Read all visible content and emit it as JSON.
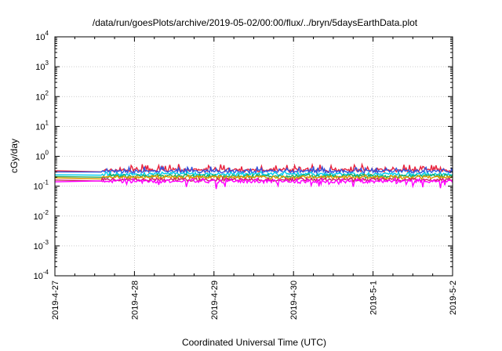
{
  "chart_data": {
    "type": "line",
    "title": "/data/run/goesPlots/archive/2019-05-02/00:00/flux/../bryn/5daysEarthData.plot",
    "xlabel": "Coordinated Universal Time (UTC)",
    "ylabel": "cGy/day",
    "y_scale": "log",
    "ylim": [
      0.0001,
      10000
    ],
    "xlim": [
      "2019-04-27T00:00",
      "2019-05-02T00:00"
    ],
    "x_ticks": [
      "2019-4-27",
      "2019-4-28",
      "2019-4-29",
      "2019-4-30",
      "2019-5-1",
      "2019-5-2"
    ],
    "y_ticks": [
      {
        "base": "10",
        "exp": "-4"
      },
      {
        "base": "10",
        "exp": "-3"
      },
      {
        "base": "10",
        "exp": "-2"
      },
      {
        "base": "10",
        "exp": "-1"
      },
      {
        "base": "10",
        "exp": "0"
      },
      {
        "base": "10",
        "exp": "1"
      },
      {
        "base": "10",
        "exp": "2"
      },
      {
        "base": "10",
        "exp": "3"
      },
      {
        "base": "10",
        "exp": "4"
      }
    ],
    "grid": true,
    "series": [
      {
        "color": "#e8223c",
        "base": 0.33,
        "spike": 0.18,
        "dip": 0.0
      },
      {
        "color": "#3355dd",
        "base": 0.3,
        "spike": 0.12,
        "dip": 0.02
      },
      {
        "color": "#00ccee",
        "base": 0.24,
        "spike": 0.04,
        "dip": 0.01
      },
      {
        "color": "#22aa55",
        "base": 0.21,
        "spike": 0.02,
        "dip": 0.01
      },
      {
        "color": "#dd9900",
        "base": 0.19,
        "spike": 0.02,
        "dip": 0.01
      },
      {
        "color": "#cc2266",
        "base": 0.16,
        "spike": 0.01,
        "dip": 0.01
      },
      {
        "color": "#ff00ff",
        "base": 0.14,
        "spike": 0.03,
        "dip": 0.05
      }
    ],
    "data_start": "2019-04-27T00:00",
    "data_gap_end": "2019-04-27T14:00"
  }
}
